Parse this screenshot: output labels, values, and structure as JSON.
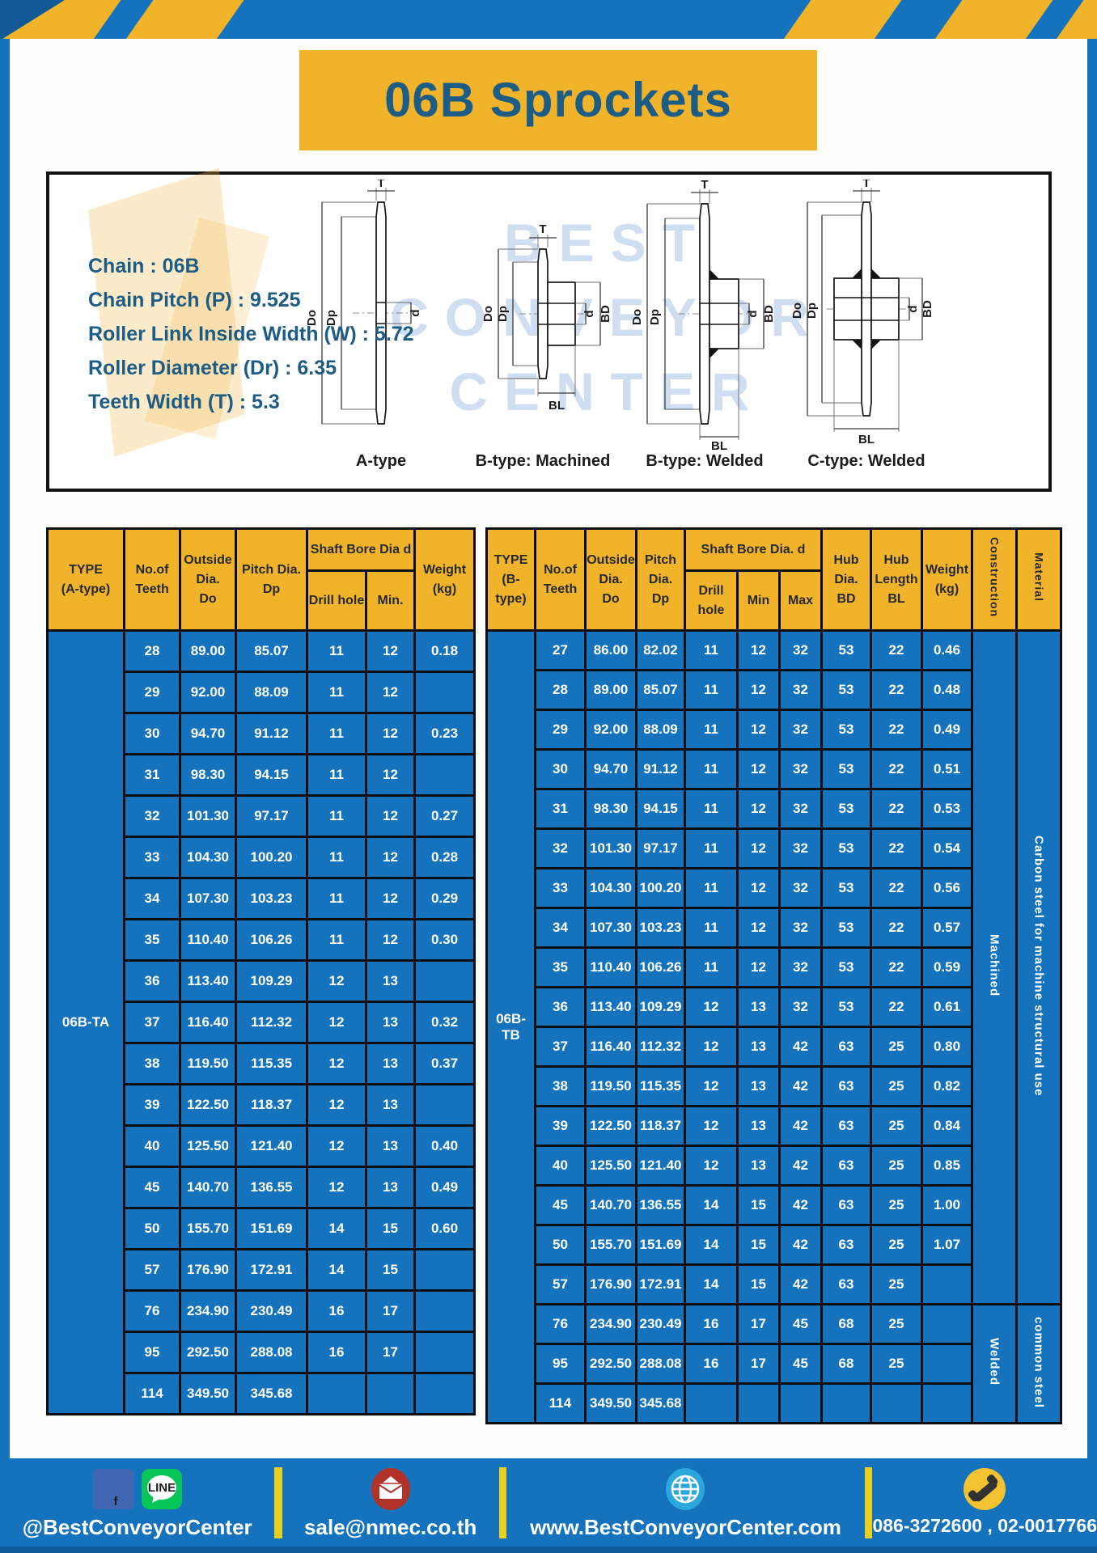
{
  "header": {
    "title": "06B Sprockets"
  },
  "specs": [
    {
      "label": "Chain",
      "value": "06B"
    },
    {
      "label": "Chain Pitch (P)",
      "value": "9.525"
    },
    {
      "label": "Roller Link Inside Width (W)",
      "value": "5.72"
    },
    {
      "label": "Roller Diameter (Dr)",
      "value": "6.35"
    },
    {
      "label": "Teeth Width (T)",
      "value": "5.3"
    }
  ],
  "drawings": {
    "captions": [
      "A-type",
      "B-type: Machined",
      "B-type: Welded",
      "C-type: Welded"
    ],
    "dims": {
      "t": "T",
      "do": "Do",
      "dp": "Dp",
      "d": "d",
      "bd": "BD",
      "bl": "BL"
    },
    "watermark_lines": [
      "BEST",
      "CONVEYOR",
      "CENTER"
    ]
  },
  "table_a": {
    "type_header": "TYPE\n(A-type)",
    "col_teeth": "No.of\nTeeth",
    "col_outside": "Outside\nDia.\nDo",
    "col_pitch": "Pitch Dia.\nDp",
    "col_shaft_group": "Shaft Bore Dia d",
    "col_drill": "Drill hole",
    "col_min": "Min.",
    "col_weight": "Weight\n(kg)",
    "type_label": "06B-TA",
    "rows": [
      [
        "28",
        "89.00",
        "85.07",
        "11",
        "12",
        "0.18"
      ],
      [
        "29",
        "92.00",
        "88.09",
        "11",
        "12",
        ""
      ],
      [
        "30",
        "94.70",
        "91.12",
        "11",
        "12",
        "0.23"
      ],
      [
        "31",
        "98.30",
        "94.15",
        "11",
        "12",
        ""
      ],
      [
        "32",
        "101.30",
        "97.17",
        "11",
        "12",
        "0.27"
      ],
      [
        "33",
        "104.30",
        "100.20",
        "11",
        "12",
        "0.28"
      ],
      [
        "34",
        "107.30",
        "103.23",
        "11",
        "12",
        "0.29"
      ],
      [
        "35",
        "110.40",
        "106.26",
        "11",
        "12",
        "0.30"
      ],
      [
        "36",
        "113.40",
        "109.29",
        "12",
        "13",
        ""
      ],
      [
        "37",
        "116.40",
        "112.32",
        "12",
        "13",
        "0.32"
      ],
      [
        "38",
        "119.50",
        "115.35",
        "12",
        "13",
        "0.37"
      ],
      [
        "39",
        "122.50",
        "118.37",
        "12",
        "13",
        ""
      ],
      [
        "40",
        "125.50",
        "121.40",
        "12",
        "13",
        "0.40"
      ],
      [
        "45",
        "140.70",
        "136.55",
        "12",
        "13",
        "0.49"
      ],
      [
        "50",
        "155.70",
        "151.69",
        "14",
        "15",
        "0.60"
      ],
      [
        "57",
        "176.90",
        "172.91",
        "14",
        "15",
        ""
      ],
      [
        "76",
        "234.90",
        "230.49",
        "16",
        "17",
        ""
      ],
      [
        "95",
        "292.50",
        "288.08",
        "16",
        "17",
        ""
      ],
      [
        "114",
        "349.50",
        "345.68",
        "",
        "",
        ""
      ]
    ]
  },
  "table_b": {
    "type_header": "TYPE\n(B-type)",
    "col_teeth": "No.of\nTeeth",
    "col_outside": "Outside\nDia.\nDo",
    "col_pitch": "Pitch\nDia.\nDp",
    "col_shaft_group": "Shaft Bore Dia. d",
    "col_drill": "Drill hole",
    "col_min": "Min",
    "col_max": "Max",
    "col_hub_dia": "Hub\nDia.\nBD",
    "col_hub_len": "Hub\nLength\nBL",
    "col_weight": "Weight\n(kg)",
    "col_construction": "Construction",
    "col_material": "Material",
    "type_label": "06B-TB",
    "rows": [
      [
        "27",
        "86.00",
        "82.02",
        "11",
        "12",
        "32",
        "53",
        "22",
        "0.46"
      ],
      [
        "28",
        "89.00",
        "85.07",
        "11",
        "12",
        "32",
        "53",
        "22",
        "0.48"
      ],
      [
        "29",
        "92.00",
        "88.09",
        "11",
        "12",
        "32",
        "53",
        "22",
        "0.49"
      ],
      [
        "30",
        "94.70",
        "91.12",
        "11",
        "12",
        "32",
        "53",
        "22",
        "0.51"
      ],
      [
        "31",
        "98.30",
        "94.15",
        "11",
        "12",
        "32",
        "53",
        "22",
        "0.53"
      ],
      [
        "32",
        "101.30",
        "97.17",
        "11",
        "12",
        "32",
        "53",
        "22",
        "0.54"
      ],
      [
        "33",
        "104.30",
        "100.20",
        "11",
        "12",
        "32",
        "53",
        "22",
        "0.56"
      ],
      [
        "34",
        "107.30",
        "103.23",
        "11",
        "12",
        "32",
        "53",
        "22",
        "0.57"
      ],
      [
        "35",
        "110.40",
        "106.26",
        "11",
        "12",
        "32",
        "53",
        "22",
        "0.59"
      ],
      [
        "36",
        "113.40",
        "109.29",
        "12",
        "13",
        "32",
        "53",
        "22",
        "0.61"
      ],
      [
        "37",
        "116.40",
        "112.32",
        "12",
        "13",
        "42",
        "63",
        "25",
        "0.80"
      ],
      [
        "38",
        "119.50",
        "115.35",
        "12",
        "13",
        "42",
        "63",
        "25",
        "0.82"
      ],
      [
        "39",
        "122.50",
        "118.37",
        "12",
        "13",
        "42",
        "63",
        "25",
        "0.84"
      ],
      [
        "40",
        "125.50",
        "121.40",
        "12",
        "13",
        "42",
        "63",
        "25",
        "0.85"
      ],
      [
        "45",
        "140.70",
        "136.55",
        "14",
        "15",
        "42",
        "63",
        "25",
        "1.00"
      ],
      [
        "50",
        "155.70",
        "151.69",
        "14",
        "15",
        "42",
        "63",
        "25",
        "1.07"
      ],
      [
        "57",
        "176.90",
        "172.91",
        "14",
        "15",
        "42",
        "63",
        "25",
        ""
      ],
      [
        "76",
        "234.90",
        "230.49",
        "16",
        "17",
        "45",
        "68",
        "25",
        ""
      ],
      [
        "95",
        "292.50",
        "288.08",
        "16",
        "17",
        "45",
        "68",
        "25",
        ""
      ],
      [
        "114",
        "349.50",
        "345.68",
        "",
        "",
        "",
        "",
        "",
        ""
      ]
    ],
    "construction_segments": [
      {
        "label": "Machined",
        "from": 0,
        "span": 17
      },
      {
        "label": "Welded",
        "from": 17,
        "span": 3
      }
    ],
    "material_segments": [
      {
        "label": "Carbon steel for machine structural use",
        "from": 0,
        "span": 17
      },
      {
        "label": "common steel",
        "from": 17,
        "span": 3
      }
    ]
  },
  "footer": {
    "social": "@BestConveyorCenter",
    "email": "sale@nmec.co.th",
    "website": "www.BestConveyorCenter.com",
    "phone": "086-3272600 , 02-0017766",
    "facebook_letter": "f",
    "line_text": "LINE"
  },
  "colors": {
    "blue": "#1573bd",
    "yellow": "#f0b32a",
    "navy_text": "#1d5c85",
    "divider_yellow": "#e9cf1e"
  }
}
